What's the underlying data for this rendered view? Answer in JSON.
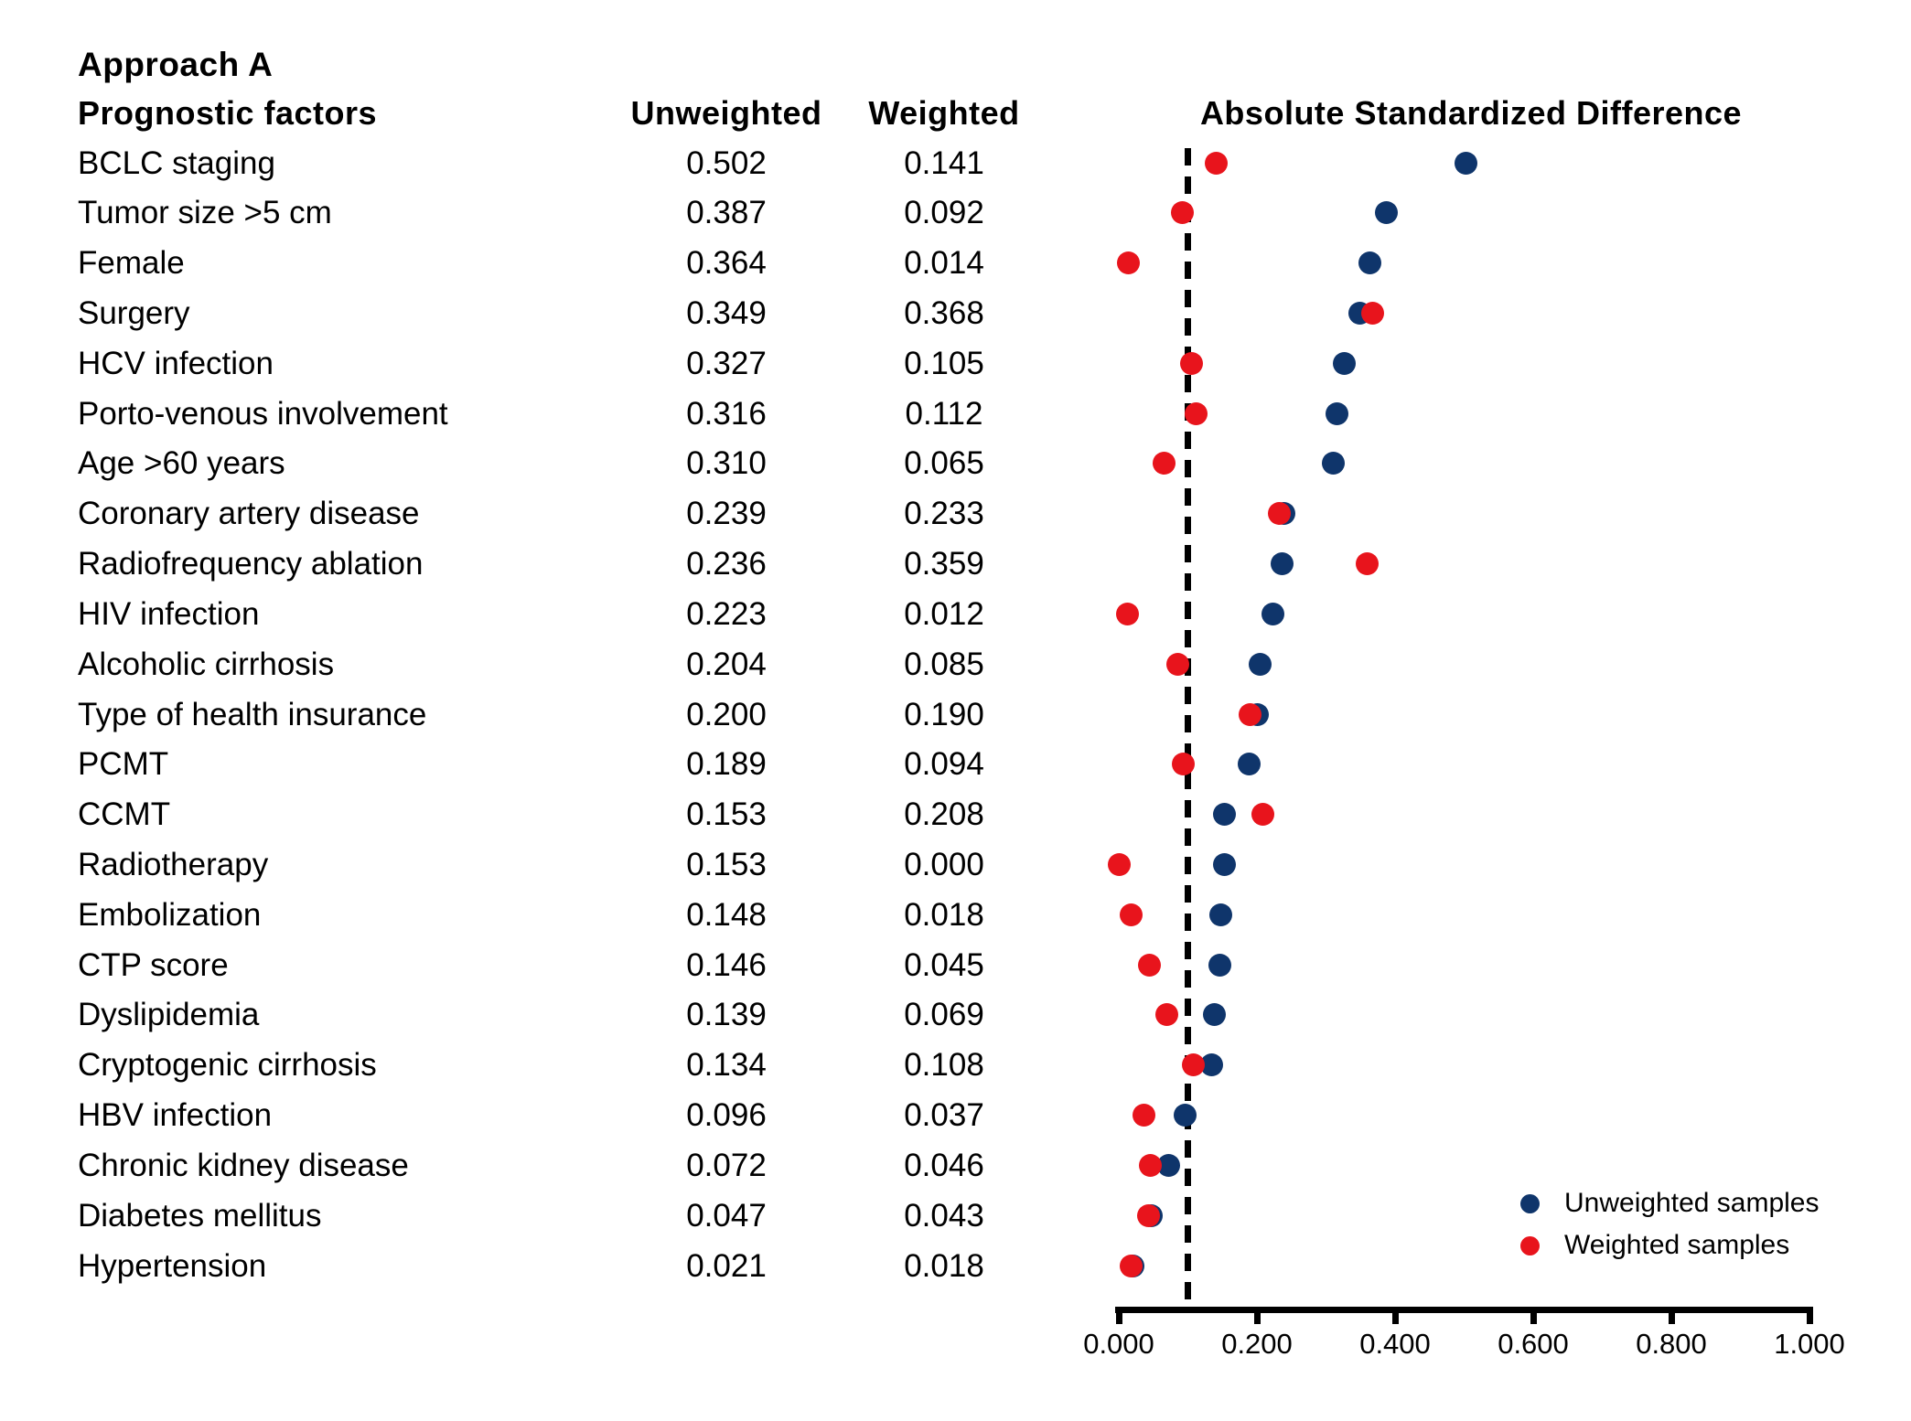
{
  "title": "Approach A",
  "columns": {
    "factors": "Prognostic factors",
    "unweighted": "Unweighted",
    "weighted": "Weighted",
    "chart": "Absolute Standardized Difference"
  },
  "legend": [
    {
      "label": "Unweighted samples",
      "color": "#0f356b"
    },
    {
      "label": "Weighted samples",
      "color": "#e8141c"
    }
  ],
  "chart_data": {
    "type": "scatter",
    "title": "Absolute Standardized Difference",
    "categories": [
      "BCLC staging",
      "Tumor size >5 cm",
      "Female",
      "Surgery",
      "HCV infection",
      "Porto-venous involvement",
      "Age >60 years",
      "Coronary artery disease",
      "Radiofrequency ablation",
      "HIV infection",
      "Alcoholic cirrhosis",
      "Type of health insurance",
      "PCMT",
      "CCMT",
      "Radiotherapy",
      "Embolization",
      "CTP score",
      "Dyslipidemia",
      "Cryptogenic cirrhosis",
      "HBV infection",
      "Chronic kidney disease",
      "Diabetes mellitus",
      "Hypertension"
    ],
    "series": [
      {
        "name": "Unweighted samples",
        "color": "#0f356b",
        "values": [
          0.502,
          0.387,
          0.364,
          0.349,
          0.327,
          0.316,
          0.31,
          0.239,
          0.236,
          0.223,
          0.204,
          0.2,
          0.189,
          0.153,
          0.153,
          0.148,
          0.146,
          0.139,
          0.134,
          0.096,
          0.072,
          0.047,
          0.021
        ]
      },
      {
        "name": "Weighted samples",
        "color": "#e8141c",
        "values": [
          0.141,
          0.092,
          0.014,
          0.368,
          0.105,
          0.112,
          0.065,
          0.233,
          0.359,
          0.012,
          0.085,
          0.19,
          0.094,
          0.208,
          0.0,
          0.018,
          0.045,
          0.069,
          0.108,
          0.037,
          0.046,
          0.043,
          0.018
        ]
      }
    ],
    "xlim": [
      0.0,
      1.0
    ],
    "x_ticks": [
      "0.000",
      "0.200",
      "0.400",
      "0.600",
      "0.800",
      "1.000"
    ],
    "reference_line": 0.1,
    "grid": false,
    "legend_position": "bottom-right",
    "value_format_decimals": 3
  }
}
